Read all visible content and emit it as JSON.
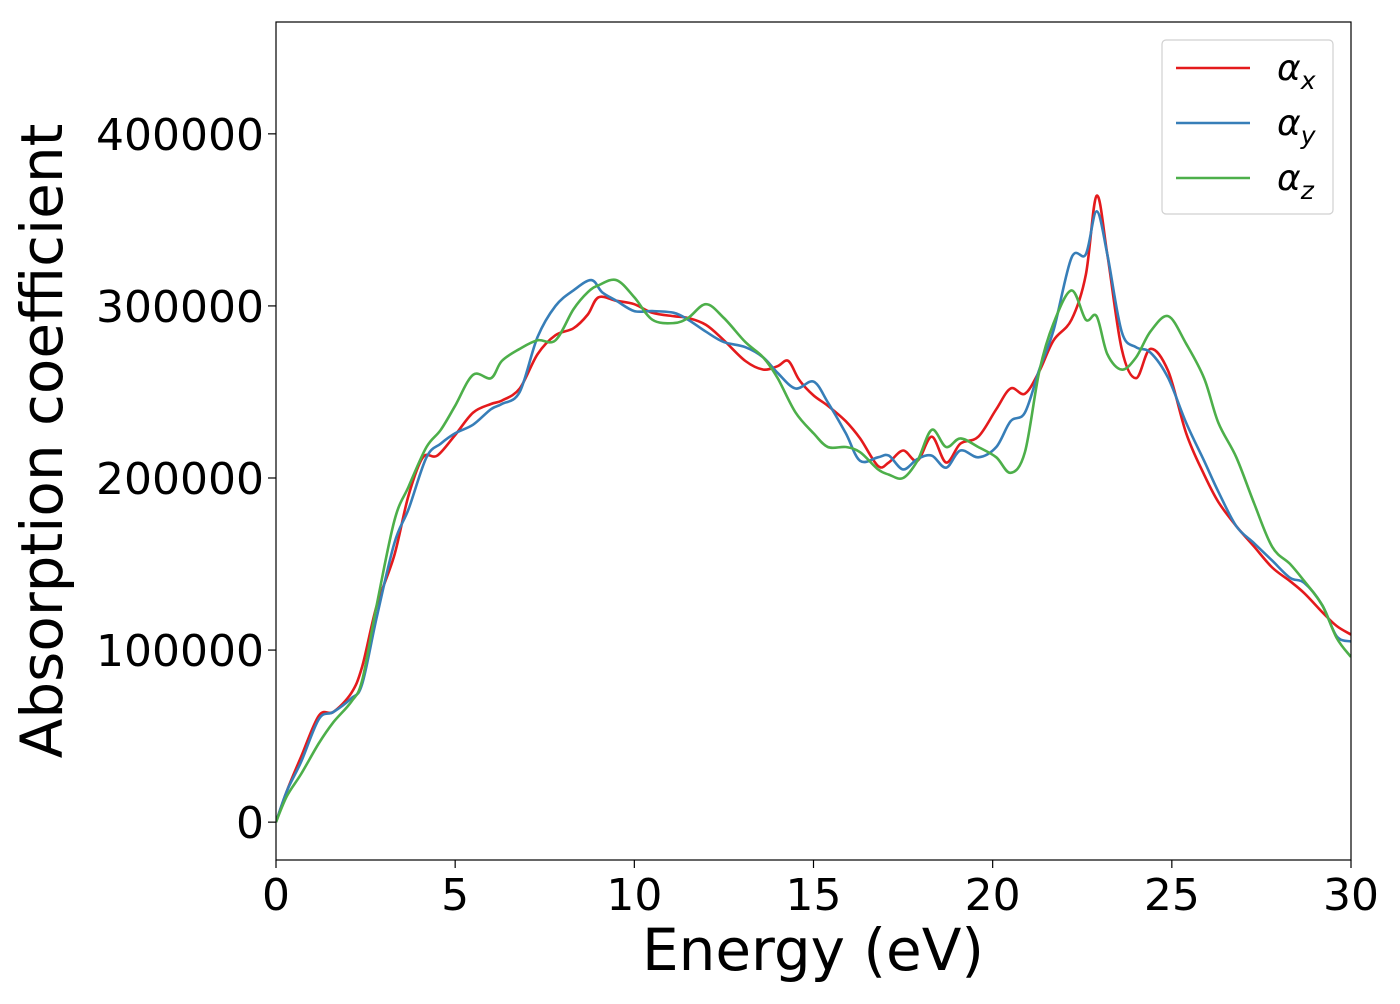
{
  "chart_data": {
    "type": "line",
    "title": "",
    "xlabel": "Energy (eV)",
    "ylabel": "Absorption coefficient",
    "xlim": [
      0,
      30
    ],
    "ylim": [
      -22000,
      465000
    ],
    "x_ticks": [
      0,
      5,
      10,
      15,
      20,
      25,
      30
    ],
    "x_tick_labels": [
      "0",
      "5",
      "10",
      "15",
      "20",
      "25",
      "30"
    ],
    "y_ticks": [
      0,
      100000,
      200000,
      300000,
      400000
    ],
    "y_tick_labels": [
      "0",
      "100000",
      "200000",
      "300000",
      "400000"
    ],
    "grid": false,
    "legend_position": "top-right",
    "series": [
      {
        "name": "α_x",
        "legend_base": "α",
        "legend_sub": "x",
        "color": "#e41a1c",
        "points": [
          [
            0,
            0
          ],
          [
            0.3,
            18000
          ],
          [
            0.7,
            38000
          ],
          [
            1.2,
            62000
          ],
          [
            1.6,
            64000
          ],
          [
            2.1,
            75000
          ],
          [
            2.4,
            90000
          ],
          [
            2.8,
            125000
          ],
          [
            3.3,
            155000
          ],
          [
            3.7,
            190000
          ],
          [
            4.1,
            212000
          ],
          [
            4.5,
            213000
          ],
          [
            5,
            225000
          ],
          [
            5.5,
            238000
          ],
          [
            6,
            243000
          ],
          [
            6.3,
            245000
          ],
          [
            6.8,
            252000
          ],
          [
            7.3,
            272000
          ],
          [
            7.8,
            283000
          ],
          [
            8.3,
            287000
          ],
          [
            8.7,
            295000
          ],
          [
            9,
            305000
          ],
          [
            9.5,
            303000
          ],
          [
            10,
            301000
          ],
          [
            10.5,
            296000
          ],
          [
            11.1,
            294000
          ],
          [
            11.5,
            293000
          ],
          [
            12,
            289000
          ],
          [
            12.5,
            280000
          ],
          [
            13.1,
            268000
          ],
          [
            13.6,
            263000
          ],
          [
            14,
            265000
          ],
          [
            14.3,
            268000
          ],
          [
            14.6,
            257000
          ],
          [
            15,
            248000
          ],
          [
            15.4,
            242000
          ],
          [
            15.9,
            233000
          ],
          [
            16.3,
            223000
          ],
          [
            16.8,
            207000
          ],
          [
            17.1,
            209000
          ],
          [
            17.5,
            216000
          ],
          [
            17.9,
            210000
          ],
          [
            18.3,
            224000
          ],
          [
            18.7,
            209000
          ],
          [
            19.1,
            220000
          ],
          [
            19.6,
            224000
          ],
          [
            20.1,
            240000
          ],
          [
            20.5,
            252000
          ],
          [
            20.9,
            249000
          ],
          [
            21.3,
            262000
          ],
          [
            21.7,
            280000
          ],
          [
            22.2,
            292000
          ],
          [
            22.6,
            318000
          ],
          [
            22.9,
            364000
          ],
          [
            23.2,
            330000
          ],
          [
            23.6,
            275000
          ],
          [
            24,
            258000
          ],
          [
            24.4,
            275000
          ],
          [
            24.9,
            262000
          ],
          [
            25.4,
            226000
          ],
          [
            25.9,
            202000
          ],
          [
            26.3,
            186000
          ],
          [
            26.8,
            172000
          ],
          [
            27.3,
            160000
          ],
          [
            27.8,
            148000
          ],
          [
            28.3,
            140000
          ],
          [
            28.7,
            133000
          ],
          [
            29.2,
            122000
          ],
          [
            29.6,
            114000
          ],
          [
            30,
            109000
          ]
        ]
      },
      {
        "name": "α_y",
        "legend_base": "α",
        "legend_sub": "y",
        "color": "#377eb8",
        "points": [
          [
            0,
            0
          ],
          [
            0.3,
            18000
          ],
          [
            0.7,
            35000
          ],
          [
            1.2,
            60000
          ],
          [
            1.6,
            64000
          ],
          [
            2.1,
            72000
          ],
          [
            2.4,
            80000
          ],
          [
            2.8,
            118000
          ],
          [
            3.3,
            162000
          ],
          [
            3.7,
            182000
          ],
          [
            4.2,
            212000
          ],
          [
            4.6,
            220000
          ],
          [
            5,
            226000
          ],
          [
            5.5,
            231000
          ],
          [
            6,
            240000
          ],
          [
            6.3,
            243000
          ],
          [
            6.8,
            250000
          ],
          [
            7.3,
            282000
          ],
          [
            7.8,
            300000
          ],
          [
            8.3,
            309000
          ],
          [
            8.8,
            315000
          ],
          [
            9.1,
            308000
          ],
          [
            9.5,
            303000
          ],
          [
            10,
            297000
          ],
          [
            10.5,
            297000
          ],
          [
            11.1,
            296000
          ],
          [
            11.5,
            292000
          ],
          [
            12,
            285000
          ],
          [
            12.5,
            279000
          ],
          [
            13.1,
            276000
          ],
          [
            13.6,
            270000
          ],
          [
            14,
            261000
          ],
          [
            14.5,
            252000
          ],
          [
            15,
            256000
          ],
          [
            15.4,
            244000
          ],
          [
            15.9,
            226000
          ],
          [
            16.3,
            210000
          ],
          [
            16.8,
            212000
          ],
          [
            17.1,
            213000
          ],
          [
            17.5,
            205000
          ],
          [
            17.9,
            211000
          ],
          [
            18.3,
            213000
          ],
          [
            18.7,
            206000
          ],
          [
            19.1,
            216000
          ],
          [
            19.6,
            212000
          ],
          [
            20.1,
            218000
          ],
          [
            20.5,
            233000
          ],
          [
            20.9,
            238000
          ],
          [
            21.3,
            263000
          ],
          [
            21.7,
            286000
          ],
          [
            22.2,
            328000
          ],
          [
            22.6,
            330000
          ],
          [
            22.9,
            355000
          ],
          [
            23.2,
            330000
          ],
          [
            23.6,
            285000
          ],
          [
            24,
            276000
          ],
          [
            24.4,
            273000
          ],
          [
            24.9,
            258000
          ],
          [
            25.4,
            232000
          ],
          [
            25.9,
            210000
          ],
          [
            26.3,
            192000
          ],
          [
            26.8,
            172000
          ],
          [
            27.3,
            162000
          ],
          [
            27.8,
            152000
          ],
          [
            28.3,
            142000
          ],
          [
            28.7,
            139000
          ],
          [
            29.2,
            126000
          ],
          [
            29.6,
            108000
          ],
          [
            30,
            105000
          ]
        ]
      },
      {
        "name": "α_z",
        "legend_base": "α",
        "legend_sub": "z",
        "color": "#4daf4a",
        "points": [
          [
            0,
            0
          ],
          [
            0.3,
            15000
          ],
          [
            0.7,
            28000
          ],
          [
            1.2,
            46000
          ],
          [
            1.6,
            58000
          ],
          [
            2.1,
            70000
          ],
          [
            2.4,
            82000
          ],
          [
            2.8,
            125000
          ],
          [
            3.3,
            175000
          ],
          [
            3.7,
            195000
          ],
          [
            4.2,
            218000
          ],
          [
            4.6,
            228000
          ],
          [
            5,
            242000
          ],
          [
            5.5,
            260000
          ],
          [
            6,
            258000
          ],
          [
            6.3,
            268000
          ],
          [
            6.8,
            275000
          ],
          [
            7.3,
            280000
          ],
          [
            7.8,
            280000
          ],
          [
            8.3,
            298000
          ],
          [
            8.7,
            308000
          ],
          [
            9,
            312000
          ],
          [
            9.5,
            315000
          ],
          [
            10,
            305000
          ],
          [
            10.5,
            292000
          ],
          [
            11.1,
            290000
          ],
          [
            11.5,
            293000
          ],
          [
            12,
            301000
          ],
          [
            12.5,
            293000
          ],
          [
            13.1,
            279000
          ],
          [
            13.6,
            270000
          ],
          [
            14,
            258000
          ],
          [
            14.5,
            238000
          ],
          [
            15,
            226000
          ],
          [
            15.4,
            218000
          ],
          [
            15.9,
            218000
          ],
          [
            16.3,
            215000
          ],
          [
            16.8,
            205000
          ],
          [
            17.1,
            202000
          ],
          [
            17.5,
            200000
          ],
          [
            17.9,
            210000
          ],
          [
            18.3,
            228000
          ],
          [
            18.7,
            218000
          ],
          [
            19.1,
            223000
          ],
          [
            19.6,
            218000
          ],
          [
            20.1,
            212000
          ],
          [
            20.5,
            203000
          ],
          [
            20.9,
            215000
          ],
          [
            21.3,
            262000
          ],
          [
            21.7,
            290000
          ],
          [
            22.2,
            309000
          ],
          [
            22.6,
            292000
          ],
          [
            22.9,
            294000
          ],
          [
            23.2,
            272000
          ],
          [
            23.6,
            263000
          ],
          [
            24,
            270000
          ],
          [
            24.4,
            285000
          ],
          [
            24.9,
            294000
          ],
          [
            25.4,
            278000
          ],
          [
            25.9,
            258000
          ],
          [
            26.3,
            232000
          ],
          [
            26.8,
            212000
          ],
          [
            27.3,
            185000
          ],
          [
            27.8,
            160000
          ],
          [
            28.3,
            150000
          ],
          [
            28.7,
            140000
          ],
          [
            29.2,
            126000
          ],
          [
            29.6,
            107000
          ],
          [
            30,
            96000
          ]
        ]
      }
    ]
  }
}
